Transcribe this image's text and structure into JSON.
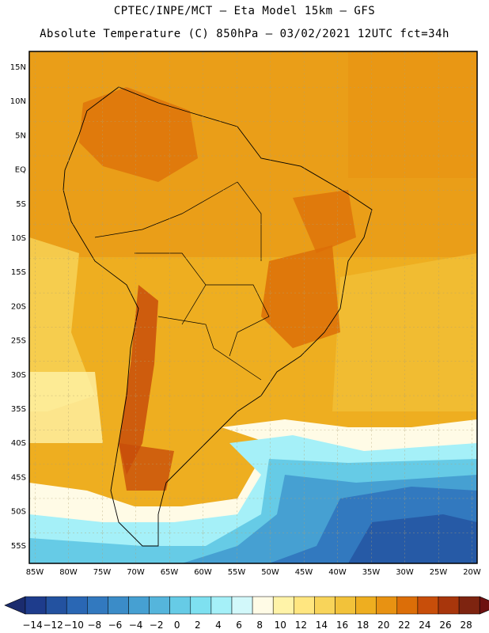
{
  "header": {
    "line1": "CPTEC/INPE/MCT –  Eta Model 15km – GFS",
    "line2": "Absolute Temperature (C) 850hPa – 03/02/2021 12UTC fct=34h"
  },
  "axes": {
    "lat_labels": [
      "15N",
      "10N",
      "5N",
      "EQ",
      "5S",
      "10S",
      "15S",
      "20S",
      "25S",
      "30S",
      "35S",
      "40S",
      "45S",
      "50S",
      "55S"
    ],
    "lon_labels": [
      "85W",
      "80W",
      "75W",
      "70W",
      "65W",
      "60W",
      "55W",
      "50W",
      "45W",
      "40W",
      "35W",
      "30W",
      "25W",
      "20W"
    ]
  },
  "colorbar": {
    "labels": [
      "-14",
      "-12",
      "-10",
      "-8",
      "-6",
      "-4",
      "-2",
      "0",
      "2",
      "4",
      "6",
      "8",
      "10",
      "12",
      "14",
      "16",
      "18",
      "20",
      "22",
      "24",
      "26",
      "28"
    ],
    "colors": [
      "#1e3c8c",
      "#2352a0",
      "#2a67b4",
      "#3279bf",
      "#3b8cc8",
      "#46a0d2",
      "#55b5dc",
      "#66cbe6",
      "#7ee0f0",
      "#a5f0f8",
      "#d2f8fa",
      "#fffbe6",
      "#fff3a8",
      "#ffe680",
      "#f8d45a",
      "#f2c23a",
      "#eeae20",
      "#e89212",
      "#dc6e08",
      "#c84e0a",
      "#a8360c",
      "#7e2410"
    ],
    "low_color": "#1b2c6e",
    "high_color": "#6e1010"
  }
}
